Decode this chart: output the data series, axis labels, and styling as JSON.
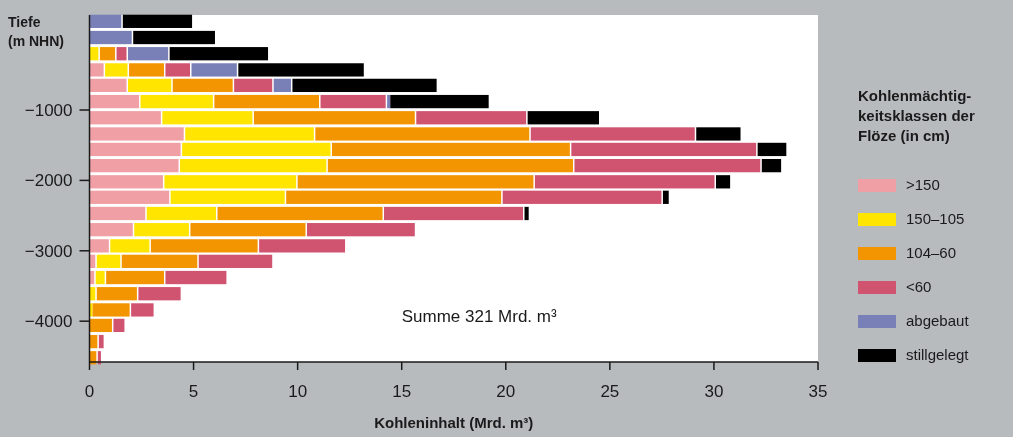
{
  "chart_data": {
    "type": "bar",
    "orientation": "horizontal",
    "stacked": true,
    "xlabel": "Kohleninhalt (Mrd. m³)",
    "ylabel": "Tiefe (m NHN)",
    "legend_title": "Kohlenmächtig-keitsklassen der Flöze (in cm)",
    "legend": "right",
    "annotations": [
      "Summe 321 Mrd. m³"
    ],
    "x": [
      260,
      30,
      -200,
      -430,
      -650,
      -880,
      -1110,
      -1340,
      -1560,
      -1790,
      -2020,
      -2240,
      -2470,
      -2700,
      -2930,
      -3150,
      -3380,
      -3610,
      -3840,
      -4060,
      -4290,
      -4520
    ],
    "xlim": [
      0,
      35
    ],
    "xticks": [
      0,
      5,
      10,
      15,
      20,
      25,
      30,
      35
    ],
    "ylim": [
      -4580,
      350
    ],
    "yticks": [
      {
        "value": -1000,
        "label": "−1000"
      },
      {
        "value": -2000,
        "label": "−2000"
      },
      {
        "value": -3000,
        "label": "−3000"
      },
      {
        "value": -4000,
        "label": "−4000"
      }
    ],
    "series": [
      {
        "name": ">150",
        "color": "#f09fa4",
        "values": [
          null,
          null,
          null,
          0.75,
          1.85,
          2.45,
          3.5,
          4.6,
          4.45,
          4.35,
          3.6,
          3.9,
          2.75,
          2.15,
          1.0,
          0.35,
          0.3,
          null,
          null,
          null,
          null,
          null
        ]
      },
      {
        "name": "150–105",
        "color": "#ffe500",
        "values": [
          null,
          null,
          0.5,
          1.15,
          2.15,
          3.55,
          4.4,
          6.25,
          7.2,
          7.1,
          6.4,
          5.55,
          3.4,
          2.7,
          1.95,
          1.2,
          0.5,
          0.35,
          0.15,
          null,
          null,
          null
        ]
      },
      {
        "name": "104–60",
        "color": "#f39500",
        "values": [
          null,
          null,
          0.8,
          1.75,
          2.95,
          5.1,
          7.8,
          10.35,
          11.5,
          11.85,
          11.4,
          10.4,
          8.0,
          5.6,
          5.2,
          3.7,
          2.85,
          2.0,
          1.85,
          1.15,
          0.45,
          0.4
        ]
      },
      {
        "name": "<60",
        "color": "#d05370",
        "values": [
          null,
          null,
          0.55,
          1.25,
          1.9,
          3.2,
          5.35,
          7.95,
          8.95,
          9.0,
          8.7,
          7.7,
          6.75,
          5.25,
          4.2,
          3.6,
          3.0,
          2.1,
          1.15,
          0.6,
          0.3,
          0.15
        ]
      },
      {
        "name": "abgebaut",
        "color": "#7980b8",
        "values": [
          1.6,
          2.1,
          2.0,
          2.25,
          0.9,
          0.15,
          null,
          null,
          null,
          null,
          null,
          null,
          null,
          null,
          null,
          null,
          null,
          null,
          null,
          null,
          null,
          null
        ]
      },
      {
        "name": "stillgelegt",
        "color": "#000000",
        "values": [
          3.4,
          4.0,
          4.8,
          6.1,
          7.0,
          4.8,
          3.5,
          2.2,
          1.45,
          1.0,
          0.75,
          0.35,
          0.2,
          null,
          null,
          null,
          null,
          null,
          null,
          null,
          null,
          null
        ]
      }
    ]
  }
}
